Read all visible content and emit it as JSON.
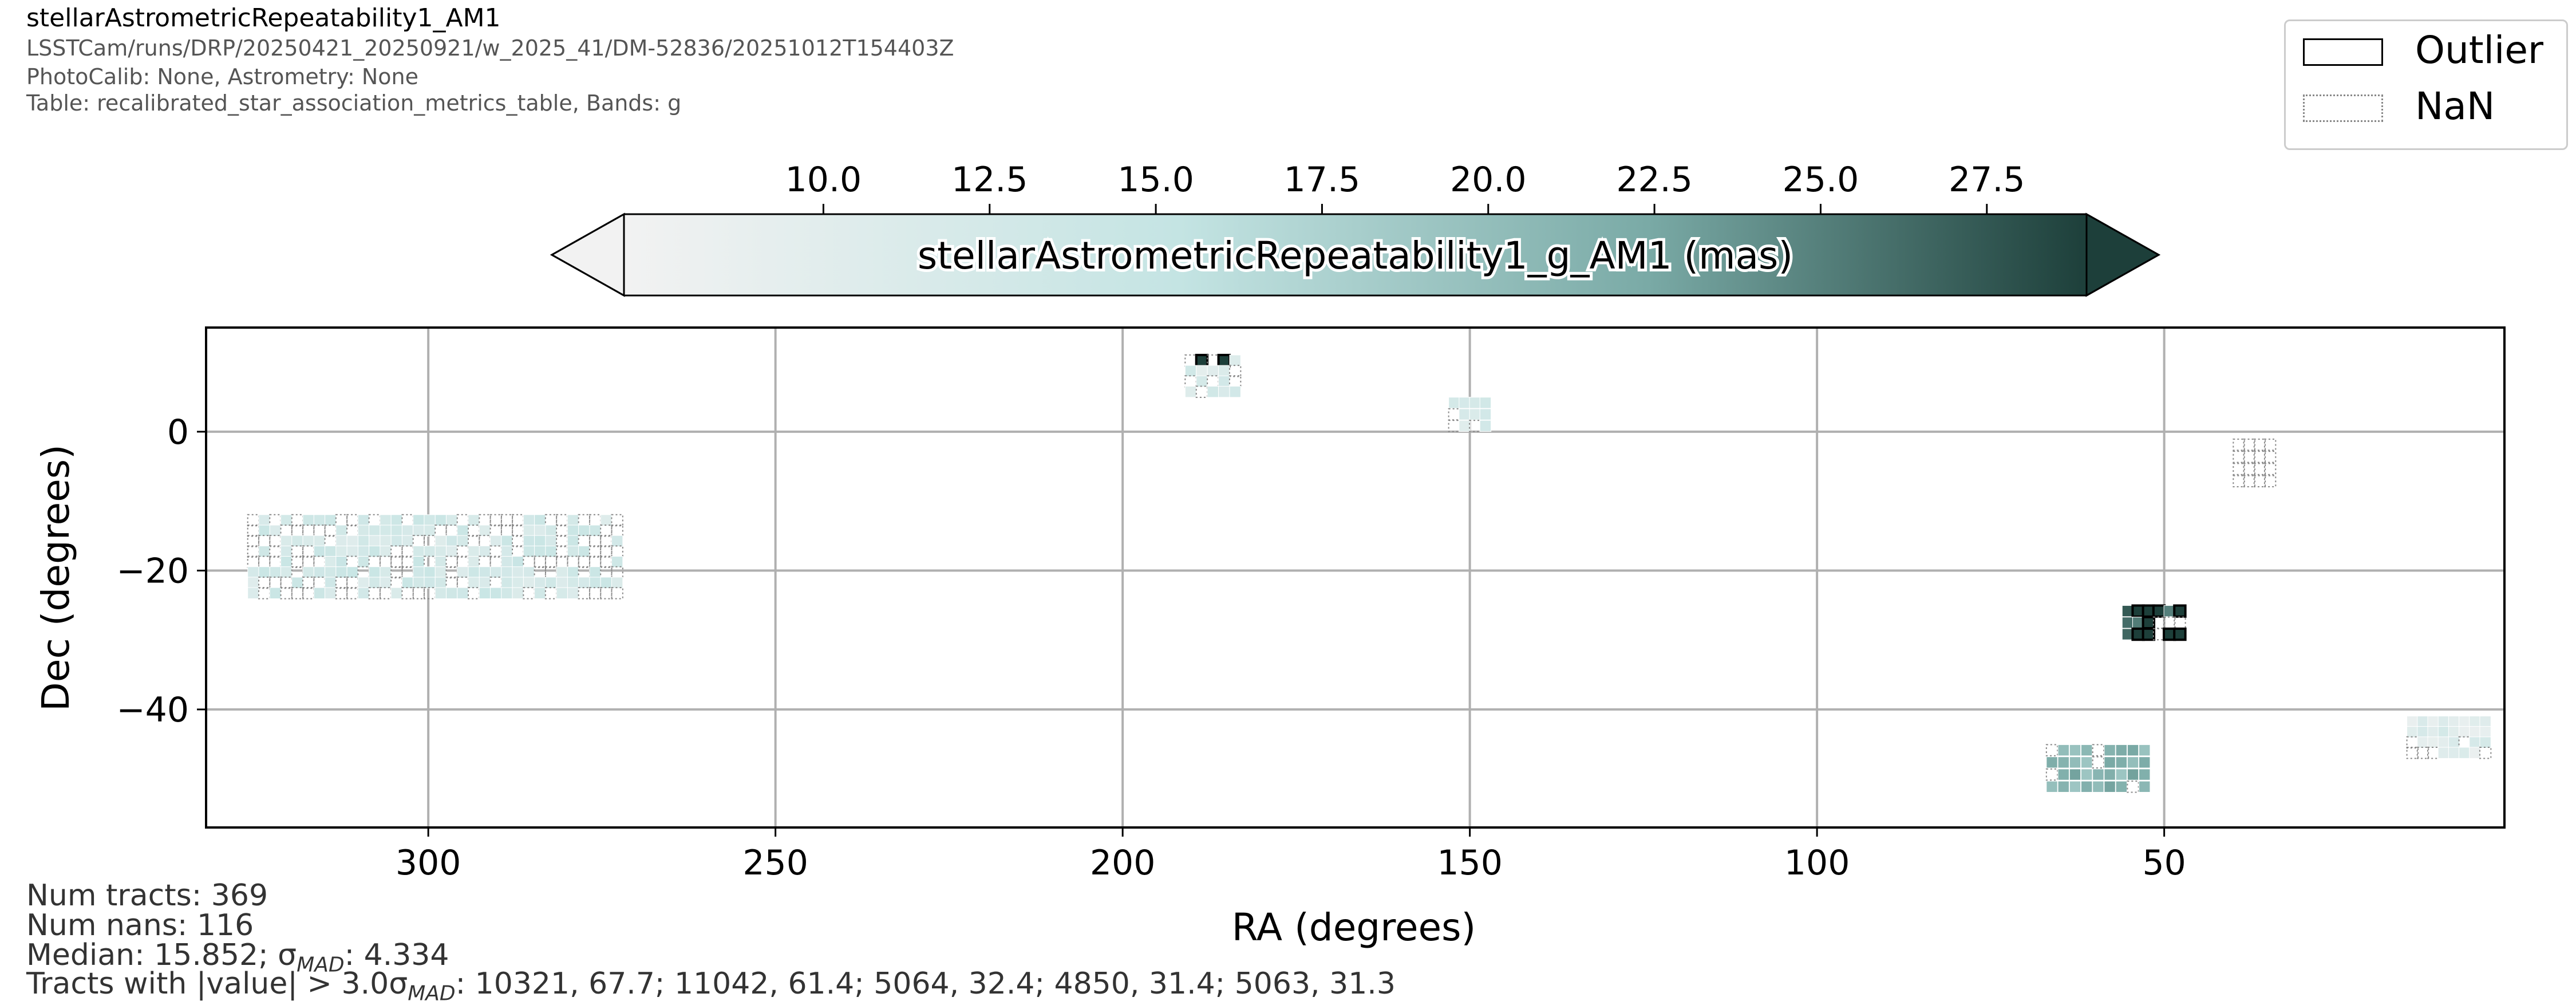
{
  "header": {
    "title": "stellarAstrometricRepeatability1_AM1",
    "line1": "LSSTCam/runs/DRP/20250421_20250921/w_2025_41/DM-52836/20251012T154403Z",
    "line2": "PhotoCalib: None, Astrometry: None",
    "line3": "Table: recalibrated_star_association_metrics_table, Bands: g"
  },
  "legend": {
    "outlier_label": "Outlier",
    "nan_label": "NaN"
  },
  "stats": {
    "num_tracts": "Num tracts: 369",
    "num_nans": "Num nans: 116",
    "median_prefix": "Median: 15.852; σ",
    "median_sub": "MAD",
    "median_suffix": ": 4.334",
    "outliers_prefix": "Tracts with |value| > 3.0σ",
    "outliers_sub": "MAD",
    "outliers_suffix": ": 10321, 67.7; 11042, 61.4; 5064, 32.4; 4850, 31.4; 5063, 31.3"
  },
  "colors": {
    "cmap_low": "#f2f2f2",
    "cmap_mid1": "#c4e4e3",
    "cmap_mid2": "#7aaaa6",
    "cmap_high": "#1d3f3a",
    "nan_edge": "#888888",
    "outlier_edge": "#000000",
    "grid": "#b0b0b0"
  },
  "chart_data": {
    "type": "heatmap",
    "xlabel": "RA (degrees)",
    "ylabel": "Dec (degrees)",
    "xlim": [
      332,
      1
    ],
    "ylim": [
      -57,
      15
    ],
    "xticks": [
      300,
      250,
      200,
      150,
      100,
      50
    ],
    "yticks": [
      0,
      -20,
      -40
    ],
    "grid": true,
    "colorbar": {
      "label": "stellarAstrometricRepeatability1_g_AM1 (mas)",
      "range": [
        7.0,
        29.0
      ],
      "ticks": [
        "10.0",
        "12.5",
        "15.0",
        "17.5",
        "20.0",
        "22.5",
        "25.0",
        "27.5"
      ],
      "extend": "both",
      "position": "top"
    },
    "regions": [
      {
        "ra": [
          272,
          326
        ],
        "dec": [
          -24,
          -12
        ],
        "value": 12.5,
        "nan_fraction": 0.45,
        "outliers": 0
      },
      {
        "ra": [
          183,
          191
        ],
        "dec": [
          5,
          11
        ],
        "value": 11.5,
        "nan_fraction": 0.4,
        "outliers": 2
      },
      {
        "ra": [
          147,
          153
        ],
        "dec": [
          0,
          5
        ],
        "value": 11.5,
        "nan_fraction": 0.2,
        "outliers": 0
      },
      {
        "ra": [
          34,
          40
        ],
        "dec": [
          -8,
          -1
        ],
        "value": null,
        "nan_fraction": 1.0,
        "outliers": 0
      },
      {
        "ra": [
          47,
          56
        ],
        "dec": [
          -30,
          -25
        ],
        "value": 26,
        "nan_fraction": 0.25,
        "outliers": 9
      },
      {
        "ra": [
          52,
          67
        ],
        "dec": [
          -52,
          -45
        ],
        "value": 21,
        "nan_fraction": 0.2,
        "outliers": 0
      },
      {
        "ra": [
          3,
          15
        ],
        "dec": [
          -47,
          -41
        ],
        "value": 10.5,
        "nan_fraction": 0.25,
        "outliers": 0
      }
    ],
    "outlier_tracts": [
      {
        "tract": 10321,
        "value": 67.7
      },
      {
        "tract": 11042,
        "value": 61.4
      },
      {
        "tract": 5064,
        "value": 32.4
      },
      {
        "tract": 4850,
        "value": 31.4
      },
      {
        "tract": 5063,
        "value": 31.3
      }
    ]
  }
}
